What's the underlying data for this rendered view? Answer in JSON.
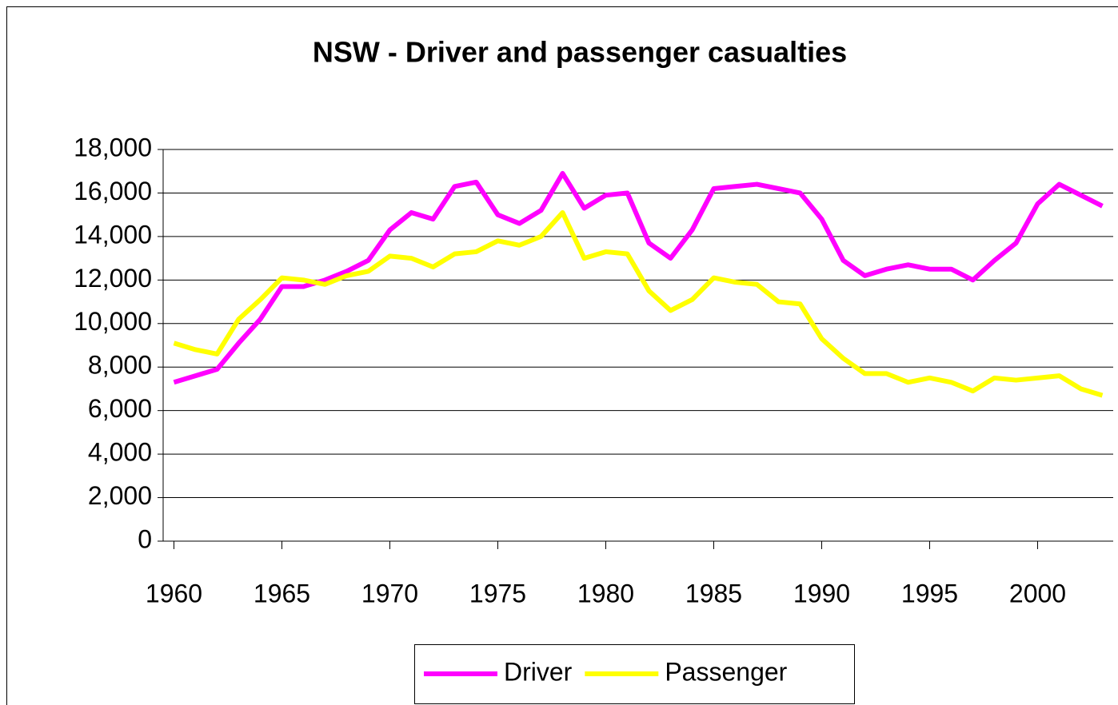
{
  "chart_data": {
    "type": "line",
    "title": "NSW - Driver and passenger casualties",
    "x": [
      1960,
      1961,
      1962,
      1963,
      1964,
      1965,
      1966,
      1967,
      1968,
      1969,
      1970,
      1971,
      1972,
      1973,
      1974,
      1975,
      1976,
      1977,
      1978,
      1979,
      1980,
      1981,
      1982,
      1983,
      1984,
      1985,
      1986,
      1987,
      1988,
      1989,
      1990,
      1991,
      1992,
      1993,
      1994,
      1995,
      1996,
      1997,
      1998,
      1999,
      2000,
      2001,
      2002,
      2003
    ],
    "series": [
      {
        "name": "Driver",
        "color": "#ff00ff",
        "values": [
          7300,
          7600,
          7900,
          9100,
          10200,
          11700,
          11700,
          12000,
          12400,
          12900,
          14300,
          15100,
          14800,
          16300,
          16500,
          15000,
          14600,
          15200,
          16900,
          15300,
          15900,
          16000,
          13700,
          13000,
          14300,
          16200,
          16300,
          16400,
          16200,
          16000,
          14800,
          12900,
          12200,
          12500,
          12700,
          12500,
          12500,
          12000,
          12900,
          13700,
          15500,
          16400,
          15900,
          15400
        ]
      },
      {
        "name": "Passenger",
        "color": "#ffff00",
        "values": [
          9100,
          8800,
          8600,
          10200,
          11100,
          12100,
          12000,
          11800,
          12200,
          12400,
          13100,
          13000,
          12600,
          13200,
          13300,
          13800,
          13600,
          14000,
          15100,
          13000,
          13300,
          13200,
          11500,
          10600,
          11100,
          12100,
          11900,
          11800,
          11000,
          10900,
          9300,
          8400,
          7700,
          7700,
          7300,
          7500,
          7300,
          6900,
          7500,
          7400,
          7500,
          7600,
          7000,
          6700
        ]
      }
    ],
    "xlim": [
      1959.5,
      2003.5
    ],
    "xticks": [
      1960,
      1965,
      1970,
      1975,
      1980,
      1985,
      1990,
      1995,
      2000
    ],
    "ylim": [
      0,
      18000
    ],
    "yticks": [
      0,
      {
        "value": 2000,
        "label": "2,000"
      },
      {
        "value": 4000,
        "label": "4,000"
      },
      {
        "value": 6000,
        "label": "6,000"
      },
      {
        "value": 8000,
        "label": "8,000"
      },
      {
        "value": 10000,
        "label": "10,000"
      },
      {
        "value": 12000,
        "label": "12,000"
      },
      {
        "value": 14000,
        "label": "14,000"
      },
      {
        "value": 16000,
        "label": "16,000"
      },
      {
        "value": 18000,
        "label": "18,000"
      }
    ],
    "grid": true,
    "legend": "bottom"
  }
}
